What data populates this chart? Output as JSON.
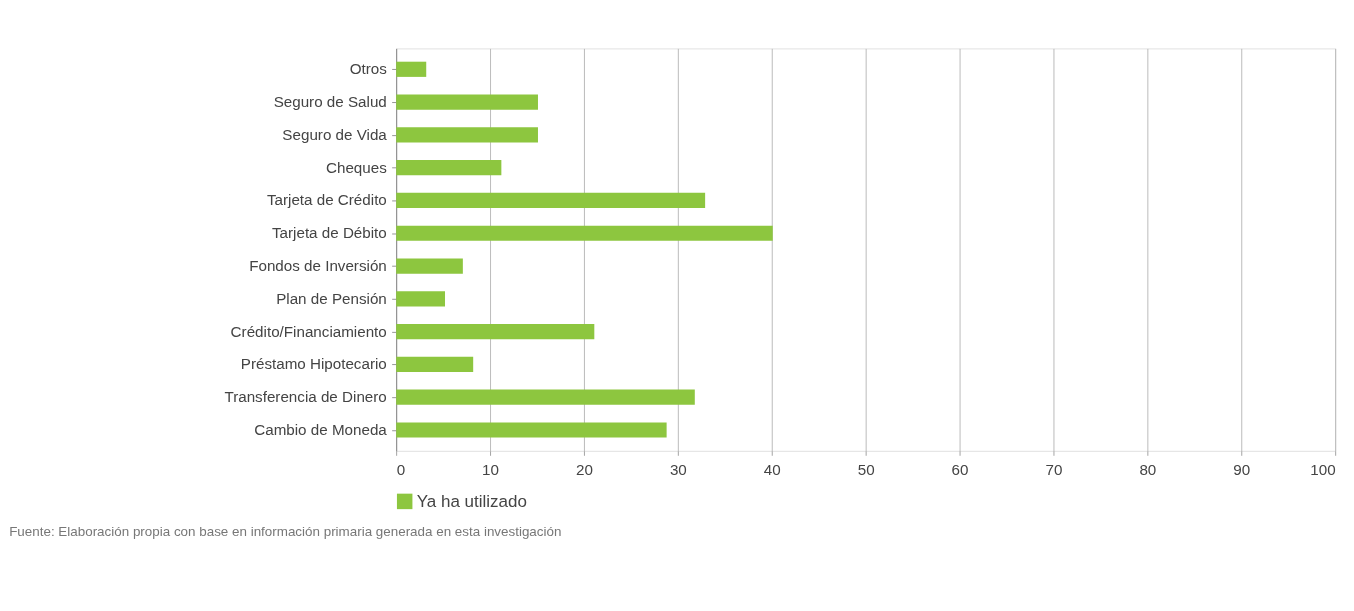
{
  "chart_data": {
    "type": "bar",
    "orientation": "horizontal",
    "categories": [
      "Otros",
      "Seguro de Salud",
      "Seguro de Vida",
      "Cheques",
      "Tarjeta de Crédito",
      "Tarjeta de Débito",
      "Fondos de Inversión",
      "Plan de Pensión",
      "Crédito/Financiamiento",
      "Préstamo Hipotecario",
      "Transferencia de Dinero",
      "Cambio de Moneda"
    ],
    "series": [
      {
        "name": "Ya ha utilizado",
        "color": "#8dc63f",
        "values": [
          3.2,
          15.1,
          15.1,
          11.2,
          32.9,
          40.1,
          7.1,
          5.2,
          21.1,
          8.2,
          31.8,
          28.8
        ]
      }
    ],
    "xlim": [
      0,
      100
    ],
    "xticks": [
      0,
      10,
      20,
      30,
      40,
      50,
      60,
      70,
      80,
      90,
      100
    ],
    "grid": "x",
    "legend": "bottom",
    "annotations": [
      "Fuente: Elaboración propia con base en información primaria generada en esta investigación"
    ]
  }
}
